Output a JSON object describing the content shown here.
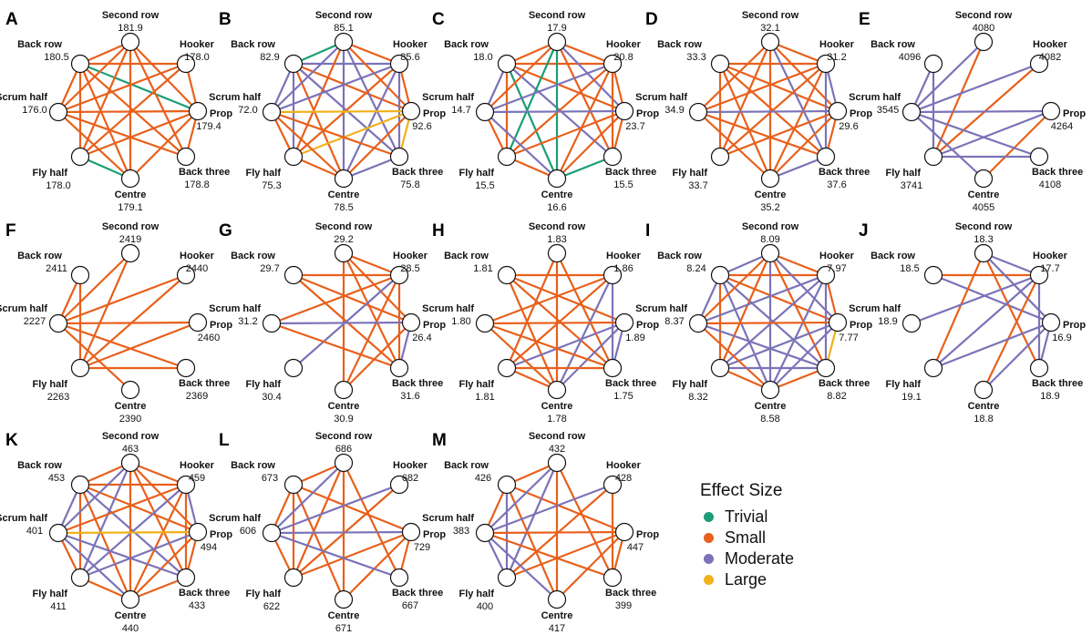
{
  "colors": {
    "trivial": "#1b9e77",
    "small": "#e8601c",
    "moderate": "#7b73b8",
    "large": "#f0b11a"
  },
  "positions": [
    "Second row",
    "Hooker",
    "Prop",
    "Back three",
    "Centre",
    "Fly half",
    "Scrum half",
    "Back row"
  ],
  "legend": {
    "title": "Effect Size",
    "items": [
      {
        "key": "trivial",
        "label": "Trivial"
      },
      {
        "key": "small",
        "label": "Small"
      },
      {
        "key": "moderate",
        "label": "Moderate"
      },
      {
        "key": "large",
        "label": "Large"
      }
    ]
  },
  "panels": [
    {
      "letter": "A",
      "values": [
        "181.9",
        "178.0",
        "179.4",
        "178.8",
        "179.1",
        "178.0",
        "176.0",
        "180.5"
      ],
      "edges": [
        [
          7,
          0,
          "s"
        ],
        [
          7,
          1,
          "s"
        ],
        [
          7,
          2,
          "t"
        ],
        [
          7,
          3,
          "s"
        ],
        [
          7,
          4,
          "s"
        ],
        [
          7,
          5,
          "s"
        ],
        [
          7,
          6,
          "s"
        ],
        [
          0,
          2,
          "s"
        ],
        [
          0,
          3,
          "s"
        ],
        [
          0,
          4,
          "s"
        ],
        [
          0,
          5,
          "s"
        ],
        [
          0,
          6,
          "s"
        ],
        [
          1,
          2,
          "s"
        ],
        [
          1,
          6,
          "s"
        ],
        [
          2,
          6,
          "s"
        ],
        [
          2,
          5,
          "s"
        ],
        [
          2,
          4,
          "s"
        ],
        [
          2,
          3,
          "s"
        ],
        [
          6,
          3,
          "s"
        ],
        [
          6,
          4,
          "s"
        ],
        [
          5,
          4,
          "t"
        ],
        [
          5,
          1,
          "s"
        ]
      ]
    },
    {
      "letter": "B",
      "values": [
        "85.1",
        "85.6",
        "92.6",
        "75.8",
        "78.5",
        "75.3",
        "72.0",
        "82.9"
      ],
      "edges": [
        [
          7,
          0,
          "t"
        ],
        [
          7,
          1,
          "m"
        ],
        [
          7,
          2,
          "s"
        ],
        [
          7,
          3,
          "m"
        ],
        [
          7,
          4,
          "s"
        ],
        [
          7,
          5,
          "m"
        ],
        [
          7,
          6,
          "m"
        ],
        [
          0,
          1,
          "s"
        ],
        [
          0,
          2,
          "s"
        ],
        [
          0,
          3,
          "m"
        ],
        [
          0,
          4,
          "m"
        ],
        [
          0,
          5,
          "s"
        ],
        [
          0,
          6,
          "m"
        ],
        [
          1,
          2,
          "s"
        ],
        [
          1,
          3,
          "m"
        ],
        [
          1,
          4,
          "m"
        ],
        [
          1,
          5,
          "s"
        ],
        [
          1,
          6,
          "m"
        ],
        [
          2,
          6,
          "l"
        ],
        [
          2,
          5,
          "l"
        ],
        [
          2,
          4,
          "s"
        ],
        [
          2,
          3,
          "l"
        ],
        [
          6,
          3,
          "s"
        ],
        [
          6,
          4,
          "s"
        ],
        [
          6,
          5,
          "s"
        ],
        [
          5,
          4,
          "s"
        ],
        [
          4,
          3,
          "m"
        ]
      ]
    },
    {
      "letter": "C",
      "values": [
        "17.9",
        "20.8",
        "23.7",
        "15.5",
        "16.6",
        "15.5",
        "14.7",
        "18.0"
      ],
      "edges": [
        [
          7,
          0,
          "s"
        ],
        [
          7,
          1,
          "s"
        ],
        [
          7,
          2,
          "s"
        ],
        [
          7,
          3,
          "m"
        ],
        [
          7,
          4,
          "t"
        ],
        [
          7,
          5,
          "s"
        ],
        [
          7,
          6,
          "m"
        ],
        [
          0,
          1,
          "s"
        ],
        [
          0,
          2,
          "m"
        ],
        [
          0,
          3,
          "s"
        ],
        [
          0,
          4,
          "t"
        ],
        [
          0,
          5,
          "t"
        ],
        [
          0,
          6,
          "s"
        ],
        [
          1,
          2,
          "s"
        ],
        [
          1,
          3,
          "s"
        ],
        [
          1,
          4,
          "s"
        ],
        [
          1,
          5,
          "s"
        ],
        [
          1,
          6,
          "m"
        ],
        [
          2,
          6,
          "m"
        ],
        [
          2,
          5,
          "s"
        ],
        [
          2,
          4,
          "s"
        ],
        [
          2,
          3,
          "s"
        ],
        [
          6,
          5,
          "s"
        ],
        [
          6,
          4,
          "m"
        ],
        [
          5,
          4,
          "s"
        ],
        [
          4,
          3,
          "t"
        ]
      ]
    },
    {
      "letter": "D",
      "values": [
        "32.1",
        "31.2",
        "29.6",
        "37.6",
        "35.2",
        "33.7",
        "34.9",
        "33.3"
      ],
      "edges": [
        [
          7,
          1,
          "s"
        ],
        [
          7,
          2,
          "s"
        ],
        [
          7,
          3,
          "s"
        ],
        [
          7,
          4,
          "s"
        ],
        [
          7,
          5,
          "s"
        ],
        [
          0,
          1,
          "s"
        ],
        [
          0,
          2,
          "s"
        ],
        [
          0,
          3,
          "m"
        ],
        [
          0,
          4,
          "s"
        ],
        [
          0,
          5,
          "s"
        ],
        [
          0,
          6,
          "s"
        ],
        [
          1,
          2,
          "m"
        ],
        [
          1,
          3,
          "m"
        ],
        [
          1,
          4,
          "s"
        ],
        [
          1,
          5,
          "s"
        ],
        [
          1,
          6,
          "s"
        ],
        [
          2,
          6,
          "m"
        ],
        [
          2,
          5,
          "s"
        ],
        [
          2,
          4,
          "s"
        ],
        [
          2,
          3,
          "s"
        ],
        [
          6,
          3,
          "s"
        ],
        [
          6,
          4,
          "s"
        ],
        [
          4,
          3,
          "m"
        ]
      ]
    },
    {
      "letter": "E",
      "values": [
        "4080",
        "4082",
        "4264",
        "4108",
        "4055",
        "3741",
        "3545",
        "4096"
      ],
      "edges": [
        [
          7,
          5,
          "m"
        ],
        [
          7,
          6,
          "m"
        ],
        [
          0,
          5,
          "s"
        ],
        [
          0,
          6,
          "m"
        ],
        [
          1,
          5,
          "s"
        ],
        [
          1,
          6,
          "m"
        ],
        [
          2,
          6,
          "m"
        ],
        [
          2,
          5,
          "m"
        ],
        [
          2,
          4,
          "s"
        ],
        [
          6,
          3,
          "m"
        ],
        [
          6,
          4,
          "m"
        ],
        [
          5,
          3,
          "m"
        ]
      ]
    },
    {
      "letter": "F",
      "values": [
        "2419",
        "2440",
        "2460",
        "2369",
        "2390",
        "2263",
        "2227",
        "2411"
      ],
      "edges": [
        [
          7,
          6,
          "s"
        ],
        [
          7,
          5,
          "s"
        ],
        [
          0,
          6,
          "s"
        ],
        [
          0,
          5,
          "s"
        ],
        [
          1,
          6,
          "s"
        ],
        [
          1,
          5,
          "s"
        ],
        [
          2,
          6,
          "s"
        ],
        [
          2,
          5,
          "s"
        ],
        [
          6,
          3,
          "s"
        ],
        [
          6,
          4,
          "s"
        ],
        [
          5,
          3,
          "s"
        ]
      ]
    },
    {
      "letter": "G",
      "values": [
        "29.2",
        "28.5",
        "26.4",
        "31.6",
        "30.9",
        "30.4",
        "31.2",
        "29.7"
      ],
      "edges": [
        [
          7,
          1,
          "s"
        ],
        [
          7,
          2,
          "s"
        ],
        [
          7,
          3,
          "s"
        ],
        [
          0,
          1,
          "s"
        ],
        [
          0,
          2,
          "s"
        ],
        [
          0,
          3,
          "s"
        ],
        [
          0,
          4,
          "s"
        ],
        [
          1,
          5,
          "m"
        ],
        [
          1,
          6,
          "s"
        ],
        [
          1,
          4,
          "s"
        ],
        [
          1,
          3,
          "s"
        ],
        [
          2,
          6,
          "m"
        ],
        [
          2,
          4,
          "s"
        ],
        [
          2,
          3,
          "m"
        ],
        [
          6,
          3,
          "s"
        ]
      ]
    },
    {
      "letter": "H",
      "values": [
        "1.83",
        "1.86",
        "1.89",
        "1.75",
        "1.78",
        "1.81",
        "1.80",
        "1.81"
      ],
      "edges": [
        [
          7,
          1,
          "s"
        ],
        [
          7,
          2,
          "s"
        ],
        [
          7,
          3,
          "s"
        ],
        [
          7,
          4,
          "s"
        ],
        [
          0,
          3,
          "s"
        ],
        [
          0,
          4,
          "s"
        ],
        [
          0,
          5,
          "s"
        ],
        [
          1,
          6,
          "s"
        ],
        [
          1,
          5,
          "s"
        ],
        [
          1,
          4,
          "m"
        ],
        [
          1,
          3,
          "m"
        ],
        [
          2,
          6,
          "s"
        ],
        [
          2,
          5,
          "m"
        ],
        [
          2,
          4,
          "m"
        ],
        [
          2,
          3,
          "m"
        ],
        [
          6,
          3,
          "s"
        ],
        [
          6,
          4,
          "s"
        ],
        [
          5,
          4,
          "s"
        ],
        [
          5,
          3,
          "s"
        ]
      ]
    },
    {
      "letter": "I",
      "values": [
        "8.09",
        "7.97",
        "7.77",
        "8.82",
        "8.58",
        "8.32",
        "8.37",
        "8.24"
      ],
      "edges": [
        [
          7,
          0,
          "m"
        ],
        [
          7,
          1,
          "s"
        ],
        [
          7,
          2,
          "s"
        ],
        [
          7,
          3,
          "m"
        ],
        [
          7,
          4,
          "m"
        ],
        [
          7,
          5,
          "s"
        ],
        [
          7,
          6,
          "m"
        ],
        [
          0,
          1,
          "s"
        ],
        [
          0,
          2,
          "m"
        ],
        [
          0,
          3,
          "s"
        ],
        [
          0,
          4,
          "m"
        ],
        [
          0,
          5,
          "s"
        ],
        [
          0,
          6,
          "s"
        ],
        [
          1,
          2,
          "s"
        ],
        [
          1,
          3,
          "m"
        ],
        [
          1,
          4,
          "m"
        ],
        [
          1,
          5,
          "m"
        ],
        [
          1,
          6,
          "m"
        ],
        [
          2,
          6,
          "s"
        ],
        [
          2,
          5,
          "m"
        ],
        [
          2,
          4,
          "m"
        ],
        [
          2,
          3,
          "l"
        ],
        [
          6,
          3,
          "m"
        ],
        [
          6,
          4,
          "s"
        ],
        [
          5,
          4,
          "s"
        ],
        [
          5,
          3,
          "m"
        ],
        [
          4,
          3,
          "s"
        ]
      ]
    },
    {
      "letter": "J",
      "values": [
        "18.3",
        "17.7",
        "16.9",
        "18.9",
        "18.8",
        "19.1",
        "18.9",
        "18.5"
      ],
      "edges": [
        [
          7,
          1,
          "s"
        ],
        [
          7,
          2,
          "m"
        ],
        [
          0,
          1,
          "m"
        ],
        [
          0,
          2,
          "m"
        ],
        [
          0,
          3,
          "s"
        ],
        [
          0,
          5,
          "s"
        ],
        [
          1,
          6,
          "m"
        ],
        [
          1,
          5,
          "m"
        ],
        [
          1,
          4,
          "s"
        ],
        [
          1,
          3,
          "m"
        ],
        [
          2,
          5,
          "m"
        ],
        [
          2,
          4,
          "m"
        ],
        [
          2,
          3,
          "m"
        ]
      ]
    },
    {
      "letter": "K",
      "values": [
        "463",
        "459",
        "494",
        "433",
        "440",
        "411",
        "401",
        "453"
      ],
      "edges": [
        [
          7,
          0,
          "s"
        ],
        [
          7,
          1,
          "s"
        ],
        [
          7,
          2,
          "s"
        ],
        [
          7,
          3,
          "m"
        ],
        [
          7,
          4,
          "s"
        ],
        [
          7,
          5,
          "s"
        ],
        [
          7,
          6,
          "m"
        ],
        [
          0,
          1,
          "s"
        ],
        [
          0,
          2,
          "s"
        ],
        [
          0,
          3,
          "s"
        ],
        [
          0,
          4,
          "s"
        ],
        [
          0,
          5,
          "m"
        ],
        [
          0,
          6,
          "m"
        ],
        [
          1,
          2,
          "m"
        ],
        [
          1,
          3,
          "s"
        ],
        [
          1,
          4,
          "s"
        ],
        [
          1,
          5,
          "m"
        ],
        [
          1,
          6,
          "s"
        ],
        [
          2,
          6,
          "l"
        ],
        [
          2,
          5,
          "m"
        ],
        [
          2,
          4,
          "s"
        ],
        [
          2,
          3,
          "s"
        ],
        [
          6,
          3,
          "m"
        ],
        [
          6,
          4,
          "m"
        ],
        [
          6,
          5,
          "s"
        ],
        [
          5,
          4,
          "s"
        ],
        [
          4,
          3,
          "s"
        ]
      ]
    },
    {
      "letter": "L",
      "values": [
        "686",
        "682",
        "729",
        "667",
        "671",
        "622",
        "606",
        "673"
      ],
      "edges": [
        [
          7,
          0,
          "s"
        ],
        [
          7,
          2,
          "s"
        ],
        [
          7,
          4,
          "s"
        ],
        [
          7,
          5,
          "s"
        ],
        [
          7,
          6,
          "s"
        ],
        [
          0,
          3,
          "s"
        ],
        [
          0,
          4,
          "s"
        ],
        [
          0,
          5,
          "s"
        ],
        [
          0,
          6,
          "m"
        ],
        [
          1,
          6,
          "m"
        ],
        [
          1,
          5,
          "s"
        ],
        [
          2,
          6,
          "m"
        ],
        [
          2,
          5,
          "s"
        ],
        [
          2,
          4,
          "s"
        ],
        [
          2,
          3,
          "s"
        ],
        [
          6,
          3,
          "m"
        ],
        [
          6,
          5,
          "s"
        ]
      ]
    },
    {
      "letter": "M",
      "values": [
        "432",
        "428",
        "447",
        "399",
        "417",
        "400",
        "383",
        "426"
      ],
      "edges": [
        [
          7,
          0,
          "s"
        ],
        [
          7,
          2,
          "s"
        ],
        [
          7,
          4,
          "s"
        ],
        [
          7,
          5,
          "m"
        ],
        [
          7,
          6,
          "s"
        ],
        [
          0,
          3,
          "s"
        ],
        [
          0,
          4,
          "s"
        ],
        [
          0,
          5,
          "m"
        ],
        [
          0,
          6,
          "m"
        ],
        [
          1,
          6,
          "m"
        ],
        [
          1,
          5,
          "s"
        ],
        [
          1,
          3,
          "s"
        ],
        [
          2,
          6,
          "s"
        ],
        [
          2,
          5,
          "s"
        ],
        [
          2,
          4,
          "s"
        ],
        [
          2,
          3,
          "s"
        ],
        [
          6,
          3,
          "s"
        ],
        [
          6,
          4,
          "m"
        ],
        [
          6,
          5,
          "m"
        ]
      ]
    }
  ]
}
